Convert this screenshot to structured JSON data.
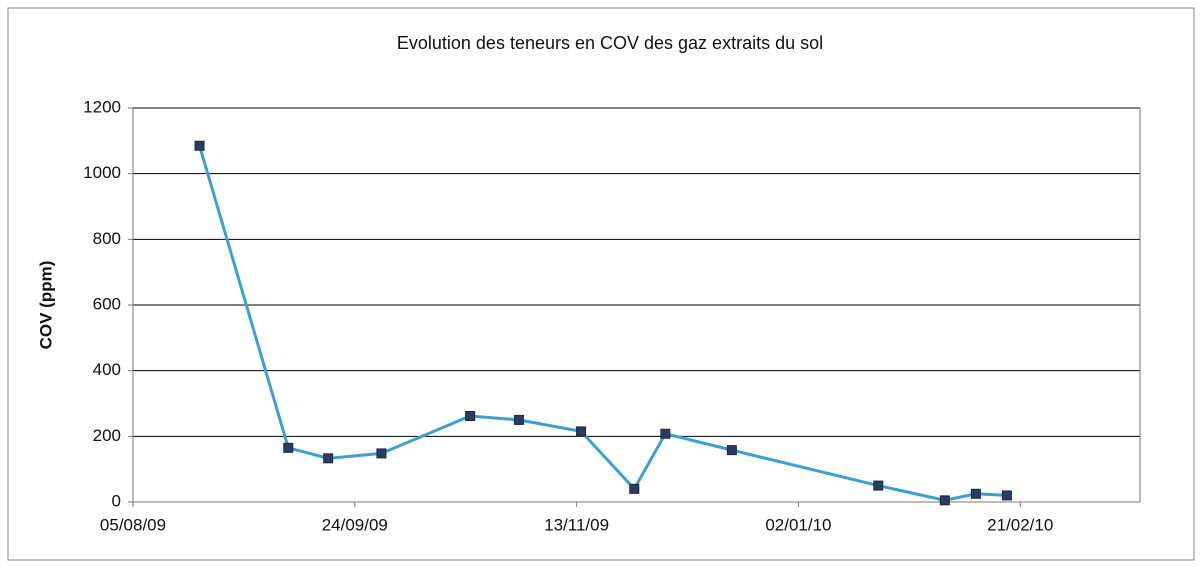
{
  "chart_data": {
    "type": "line",
    "title": "Evolution des teneurs en COV des gaz extraits du sol",
    "y_label": "COV (ppm)",
    "x": [
      "20/08/09",
      "09/09/09",
      "18/09/09",
      "30/09/09",
      "20/10/09",
      "31/10/09",
      "14/11/09",
      "26/11/09",
      "03/12/09",
      "18/12/09",
      "20/01/10",
      "04/02/10",
      "11/02/10",
      "18/02/10"
    ],
    "values": [
      1085,
      165,
      133,
      148,
      262,
      250,
      215,
      40,
      208,
      158,
      50,
      5,
      25,
      20
    ],
    "color": "#3c9fd2",
    "marker_color": "#2b3d5e",
    "xlim": [
      "05/08/09",
      "20/03/10"
    ],
    "xticks": [
      "05/08/09",
      "24/09/09",
      "13/11/09",
      "02/01/10",
      "21/02/10"
    ],
    "ylim": [
      0,
      1200
    ],
    "yticks": [
      0,
      200,
      400,
      600,
      800,
      1000,
      1200
    ],
    "grid": true
  }
}
